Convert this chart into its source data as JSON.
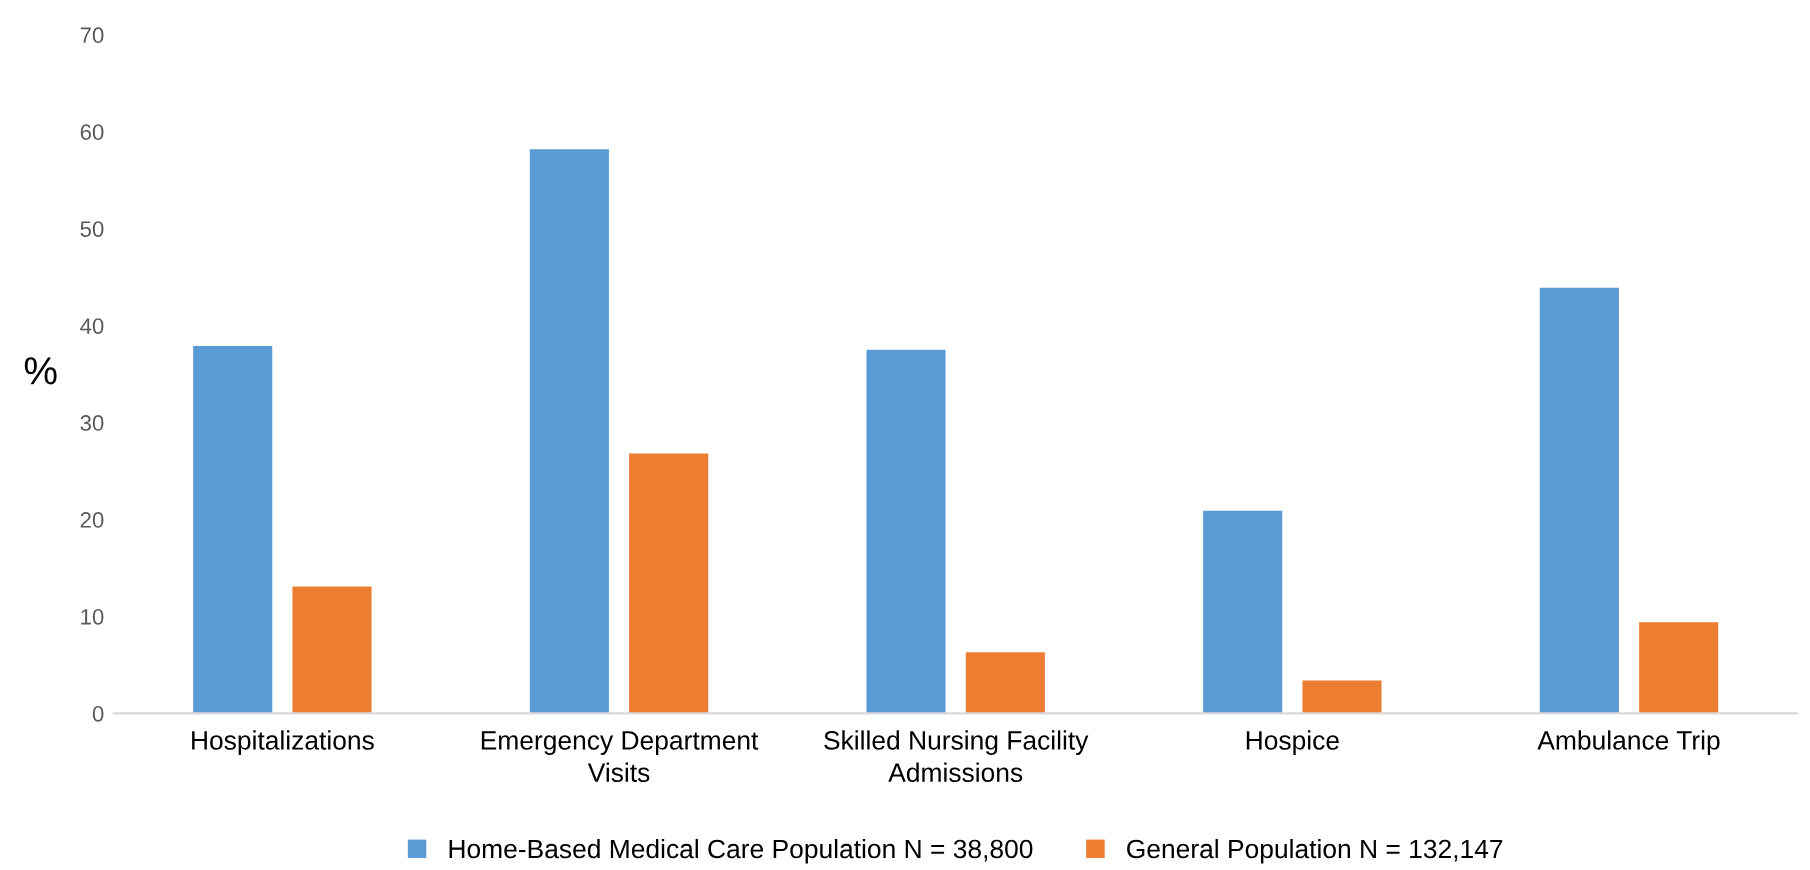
{
  "chart_data": {
    "type": "bar",
    "ylabel": "%",
    "categories": [
      "Hospitalizations",
      "Emergency Department Visits",
      "Skilled Nursing Facility Admissions",
      "Hospice",
      "Ambulance Trip"
    ],
    "series": [
      {
        "name": "Home-Based Medical Care Population N = 38,800",
        "color": "#5b9bd5",
        "values": [
          37.9,
          58.2,
          37.5,
          20.9,
          43.9
        ]
      },
      {
        "name": "General Population N = 132,147",
        "color": "#ed7d31",
        "values": [
          13.1,
          26.8,
          6.3,
          3.4,
          9.4
        ]
      }
    ],
    "ylim": [
      0,
      70
    ],
    "yticks": [
      0,
      10,
      20,
      30,
      40,
      50,
      60,
      70
    ],
    "grid": false,
    "legend": "bottom"
  }
}
